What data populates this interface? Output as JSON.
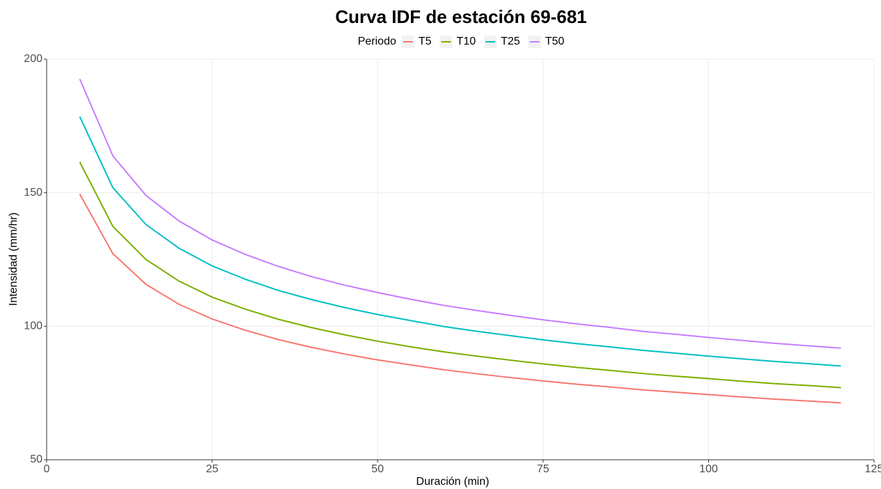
{
  "chart_data": {
    "type": "line",
    "title": "Curva IDF de estación 69-681",
    "legend_title": "Periodo",
    "legend_position": "top",
    "x_label": "Duración (min)",
    "y_label": "Intensidad (mm/hr)",
    "x": [
      5,
      10,
      15,
      20,
      25,
      30,
      35,
      40,
      45,
      50,
      55,
      60,
      65,
      70,
      75,
      80,
      85,
      90,
      95,
      100,
      105,
      110,
      115,
      120
    ],
    "series": [
      {
        "name": "T5",
        "color": "#F8766D",
        "values": [
          149.5,
          127.2,
          115.7,
          108.2,
          102.7,
          98.5,
          95.0,
          92.1,
          89.6,
          87.4,
          85.5,
          83.7,
          82.2,
          80.8,
          79.5,
          78.3,
          77.3,
          76.2,
          75.3,
          74.4,
          73.5,
          72.7,
          72.0,
          71.3
        ]
      },
      {
        "name": "T10",
        "color": "#7CAE00",
        "values": [
          161.5,
          137.4,
          125.0,
          116.9,
          110.9,
          106.4,
          102.6,
          99.5,
          96.8,
          94.4,
          92.3,
          90.4,
          88.8,
          87.3,
          85.9,
          84.6,
          83.5,
          82.3,
          81.3,
          80.4,
          79.4,
          78.5,
          77.8,
          77.0
        ]
      },
      {
        "name": "T25",
        "color": "#00BFC4",
        "values": [
          178.5,
          151.9,
          138.1,
          129.2,
          122.6,
          117.6,
          113.4,
          110.0,
          107.0,
          104.4,
          102.1,
          99.9,
          98.1,
          96.5,
          94.9,
          93.5,
          92.3,
          91.0,
          89.9,
          88.8,
          87.8,
          86.8,
          86.0,
          85.1
        ]
      },
      {
        "name": "T50",
        "color": "#C77CFF",
        "values": [
          192.6,
          163.8,
          149.0,
          139.4,
          132.3,
          126.9,
          122.4,
          118.6,
          115.4,
          112.6,
          110.1,
          107.8,
          105.9,
          104.1,
          102.4,
          100.9,
          99.6,
          98.1,
          97.0,
          95.8,
          94.7,
          93.6,
          92.7,
          91.8
        ]
      }
    ],
    "xlim": [
      0,
      125
    ],
    "xticks": [
      0,
      25,
      50,
      75,
      100,
      125
    ],
    "ylim": [
      50,
      200
    ],
    "yticks": [
      50,
      100,
      150,
      200
    ],
    "grid": true
  }
}
